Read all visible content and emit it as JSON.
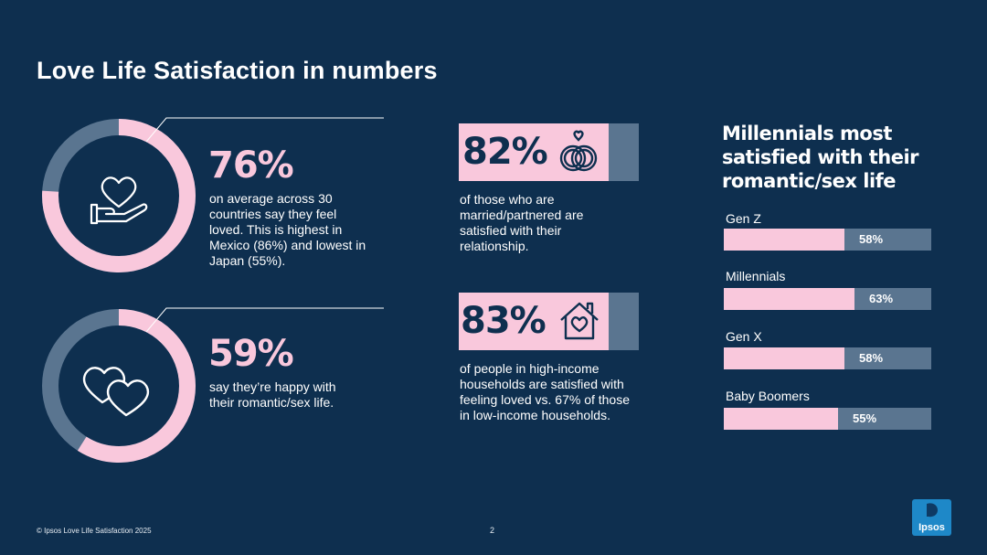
{
  "title": "Love Life Satisfaction in numbers",
  "colors": {
    "background": "#0e2f4f",
    "pink": "#f9c8dc",
    "track": "#5a7590"
  },
  "stats": [
    {
      "value": "76%",
      "text_lines": [
        "on average across 30",
        "countries say they feel",
        "loved. This is highest in",
        "Mexico (86%) and lowest in",
        "Japan (55%)."
      ],
      "icon": "heart-in-hand-icon"
    },
    {
      "value": "59%",
      "text_lines": [
        "say they’re happy with",
        "their romantic/sex life."
      ],
      "icon": "two-hearts-icon"
    }
  ],
  "boxes": [
    {
      "value": "82%",
      "text_lines": [
        "of those who are",
        "married/partnered are",
        "satisfied with their",
        "relationship."
      ],
      "icon": "wedding-rings-icon"
    },
    {
      "value": "83%",
      "text_lines": [
        "of people in high-income",
        "households are satisfied with",
        "feeling loved vs. 67% of those",
        "in low-income households."
      ],
      "icon": "house-heart-icon"
    }
  ],
  "generations_title_lines": [
    "Millennials most",
    "satisfied with their",
    "romantic/sex life"
  ],
  "chart_data": [
    {
      "type": "pie",
      "values": [
        76,
        24
      ],
      "labels": [
        "76%",
        ""
      ]
    },
    {
      "type": "pie",
      "values": [
        59,
        41
      ],
      "labels": [
        "59%",
        ""
      ]
    },
    {
      "type": "bar",
      "orientation": "horizontal",
      "title": "Millennials most satisfied with their romantic/sex life",
      "categories": [
        "Gen Z",
        "Millennials",
        "Gen X",
        "Baby Boomers"
      ],
      "values": [
        58,
        63,
        58,
        55
      ],
      "labels": [
        "58%",
        "63%",
        "58%",
        "55%"
      ],
      "xlim": [
        0,
        100
      ]
    }
  ],
  "footer": "© Ipsos Love Life Satisfaction 2025",
  "page_number": "2",
  "logo_text": "Ipsos"
}
